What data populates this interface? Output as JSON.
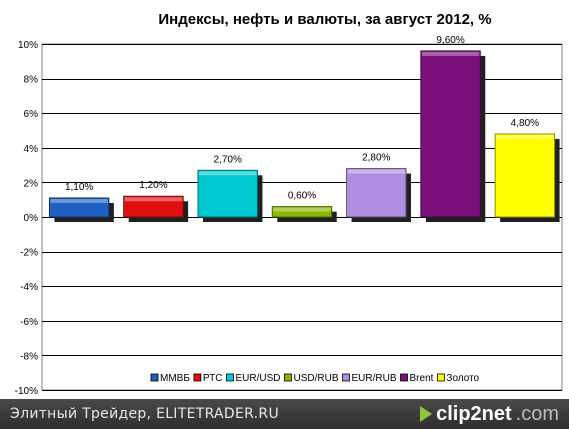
{
  "chart_data": {
    "type": "bar",
    "title": "Индексы, нефть и валюты, за август 2012, %",
    "categories": [
      "ММВБ",
      "РТС",
      "EUR/USD",
      "USD/RUB",
      "EUR/RUB",
      "Brent",
      "Золото"
    ],
    "values": [
      1.1,
      1.2,
      2.7,
      0.6,
      2.8,
      9.6,
      4.8
    ],
    "data_labels": [
      "1,10%",
      "1,20%",
      "2,70%",
      "0,60%",
      "2,80%",
      "9,60%",
      "4,80%"
    ],
    "colors": [
      "#1f5fc1",
      "#e01010",
      "#00c8d0",
      "#8ab800",
      "#b08ee0",
      "#7a0f7a",
      "#ffff00"
    ],
    "ylim": [
      -10,
      10
    ],
    "yticks": [
      10,
      8,
      6,
      4,
      2,
      0,
      -2,
      -4,
      -6,
      -8,
      -10
    ],
    "ytick_labels": [
      "10%",
      "8%",
      "6%",
      "4%",
      "2%",
      "0%",
      "-2%",
      "-4%",
      "-6%",
      "-8%",
      "-10%"
    ],
    "grid": true,
    "legend_position": "bottom"
  },
  "footer": {
    "credit": "Элитный Трейдер, ELITETRADER.RU",
    "logo_text": "clip2net",
    "logo_domain": ".com"
  }
}
